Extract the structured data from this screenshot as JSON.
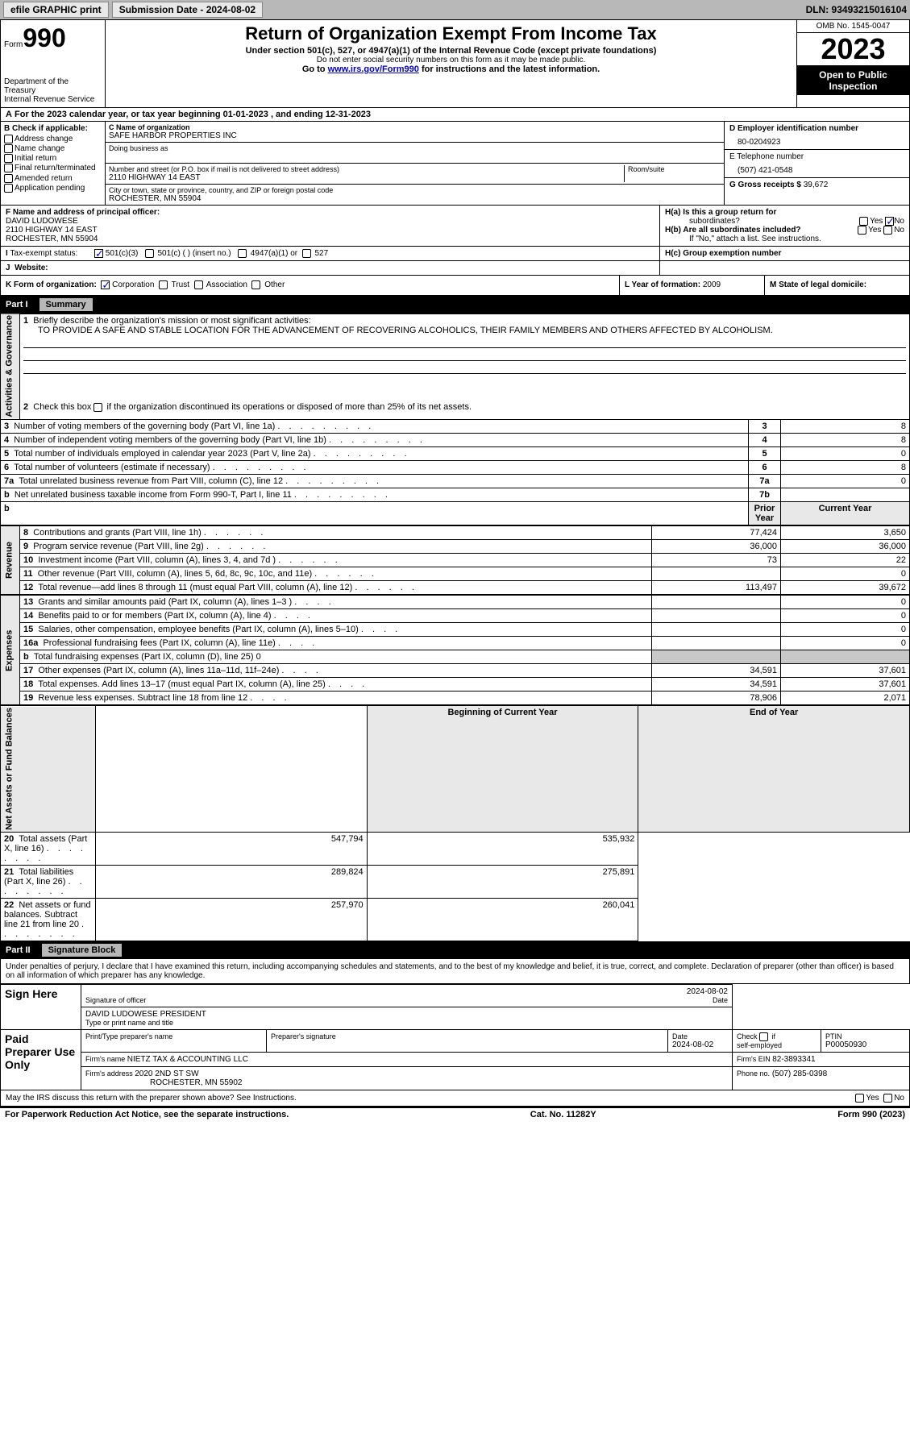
{
  "topbar": {
    "efile": "efile GRAPHIC print",
    "submission": "Submission Date - 2024-08-02",
    "dln": "DLN: 93493215016104"
  },
  "header": {
    "form": "Form",
    "form_no": "990",
    "dept": "Department of the Treasury",
    "irs": "Internal Revenue Service",
    "title": "Return of Organization Exempt From Income Tax",
    "sub1": "Under section 501(c), 527, or 4947(a)(1) of the Internal Revenue Code (except private foundations)",
    "sub2": "Do not enter social security numbers on this form as it may be made public.",
    "sub3_pre": "Go to ",
    "sub3_link": "www.irs.gov/Form990",
    "sub3_post": " for instructions and the latest information.",
    "omb": "OMB No. 1545-0047",
    "year": "2023",
    "inspect": "Open to Public Inspection"
  },
  "a": "For the 2023 calendar year, or tax year beginning 01-01-2023   , and ending 12-31-2023",
  "b": {
    "hdr": "B Check if applicable:",
    "addr": "Address change",
    "name": "Name change",
    "init": "Initial return",
    "final": "Final return/terminated",
    "amend": "Amended return",
    "app": "Application pending"
  },
  "c": {
    "name_lbl": "C Name of organization",
    "name": "SAFE HARBOR PROPERTIES INC",
    "dba_lbl": "Doing business as",
    "addr_lbl": "Number and street (or P.O. box if mail is not delivered to street address)",
    "room_lbl": "Room/suite",
    "addr": "2110 HIGHWAY 14 EAST",
    "city_lbl": "City or town, state or province, country, and ZIP or foreign postal code",
    "city": "ROCHESTER, MN  55904"
  },
  "d": {
    "ein_lbl": "D Employer identification number",
    "ein": "80-0204923",
    "tel_lbl": "E Telephone number",
    "tel": "(507) 421-0548",
    "gross_lbl": "G Gross receipts $",
    "gross": "39,672"
  },
  "f": {
    "lbl": "F  Name and address of principal officer:",
    "name": "DAVID LUDOWESE",
    "addr1": "2110 HIGHWAY 14 EAST",
    "addr2": "ROCHESTER, MN  55904"
  },
  "h": {
    "a_lbl": "H(a)  Is this a group return for",
    "a_sub": "subordinates?",
    "b_lbl": "H(b)  Are all subordinates included?",
    "b_note": "If \"No,\" attach a list. See instructions.",
    "c_lbl": "H(c)  Group exemption number  ",
    "yes": "Yes",
    "no": "No"
  },
  "i": {
    "lbl": "Tax-exempt status:",
    "o1": "501(c)(3)",
    "o2": "501(c) (   ) (insert no.)",
    "o3": "4947(a)(1) or",
    "o4": "527"
  },
  "j": {
    "lbl": "Website: "
  },
  "k": {
    "lbl": "K Form of organization:",
    "corp": "Corporation",
    "trust": "Trust",
    "assoc": "Association",
    "other": "Other"
  },
  "l": {
    "lbl": "L Year of formation:",
    "val": "2009"
  },
  "m": {
    "lbl": "M State of legal domicile:"
  },
  "part1": {
    "hdr": "Part I",
    "title": "Summary"
  },
  "summary": {
    "q1_lbl": "Briefly describe the organization's mission or most significant activities:",
    "q1_val": "TO PROVIDE A SAFE AND STABLE LOCATION FOR THE ADVANCEMENT OF RECOVERING ALCOHOLICS, THEIR FAMILY MEMBERS AND OTHERS AFFECTED BY ALCOHOLISM.",
    "q2": "Check this box      if the organization discontinued its operations or disposed of more than 25% of its net assets.",
    "rows_ag": [
      {
        "n": "3",
        "t": "Number of voting members of the governing body (Part VI, line 1a)",
        "b": "3",
        "v": "8"
      },
      {
        "n": "4",
        "t": "Number of independent voting members of the governing body (Part VI, line 1b)",
        "b": "4",
        "v": "8"
      },
      {
        "n": "5",
        "t": "Total number of individuals employed in calendar year 2023 (Part V, line 2a)",
        "b": "5",
        "v": "0"
      },
      {
        "n": "6",
        "t": "Total number of volunteers (estimate if necessary)",
        "b": "6",
        "v": "8"
      },
      {
        "n": "7a",
        "t": "Total unrelated business revenue from Part VIII, column (C), line 12",
        "b": "7a",
        "v": "0"
      },
      {
        "n": "b",
        "t": "Net unrelated business taxable income from Form 990-T, Part I, line 11",
        "b": "7b",
        "v": ""
      }
    ],
    "prior_lbl": "Prior Year",
    "curr_lbl": "Current Year",
    "rows_rev": [
      {
        "n": "8",
        "t": "Contributions and grants (Part VIII, line 1h)",
        "p": "77,424",
        "c": "3,650"
      },
      {
        "n": "9",
        "t": "Program service revenue (Part VIII, line 2g)",
        "p": "36,000",
        "c": "36,000"
      },
      {
        "n": "10",
        "t": "Investment income (Part VIII, column (A), lines 3, 4, and 7d )",
        "p": "73",
        "c": "22"
      },
      {
        "n": "11",
        "t": "Other revenue (Part VIII, column (A), lines 5, 6d, 8c, 9c, 10c, and 11e)",
        "p": "",
        "c": "0"
      },
      {
        "n": "12",
        "t": "Total revenue—add lines 8 through 11 (must equal Part VIII, column (A), line 12)",
        "p": "113,497",
        "c": "39,672"
      }
    ],
    "rows_exp": [
      {
        "n": "13",
        "t": "Grants and similar amounts paid (Part IX, column (A), lines 1–3 )",
        "p": "",
        "c": "0"
      },
      {
        "n": "14",
        "t": "Benefits paid to or for members (Part IX, column (A), line 4)",
        "p": "",
        "c": "0"
      },
      {
        "n": "15",
        "t": "Salaries, other compensation, employee benefits (Part IX, column (A), lines 5–10)",
        "p": "",
        "c": "0"
      },
      {
        "n": "16a",
        "t": "Professional fundraising fees (Part IX, column (A), line 11e)",
        "p": "",
        "c": "0"
      },
      {
        "n": "b",
        "t": "Total fundraising expenses (Part IX, column (D), line 25) 0",
        "p": "SH",
        "c": "SH"
      },
      {
        "n": "17",
        "t": "Other expenses (Part IX, column (A), lines 11a–11d, 11f–24e)",
        "p": "34,591",
        "c": "37,601"
      },
      {
        "n": "18",
        "t": "Total expenses. Add lines 13–17 (must equal Part IX, column (A), line 25)",
        "p": "34,591",
        "c": "37,601"
      },
      {
        "n": "19",
        "t": "Revenue less expenses. Subtract line 18 from line 12",
        "p": "78,906",
        "c": "2,071"
      }
    ],
    "beg_lbl": "Beginning of Current Year",
    "end_lbl": "End of Year",
    "rows_net": [
      {
        "n": "20",
        "t": "Total assets (Part X, line 16)",
        "p": "547,794",
        "c": "535,932"
      },
      {
        "n": "21",
        "t": "Total liabilities (Part X, line 26)",
        "p": "289,824",
        "c": "275,891"
      },
      {
        "n": "22",
        "t": "Net assets or fund balances. Subtract line 21 from line 20",
        "p": "257,970",
        "c": "260,041"
      }
    ],
    "vlabels": {
      "ag": "Activities & Governance",
      "rev": "Revenue",
      "exp": "Expenses",
      "net": "Net Assets or Fund Balances"
    }
  },
  "part2": {
    "hdr": "Part II",
    "title": "Signature Block"
  },
  "sig": {
    "decl": "Under penalties of perjury, I declare that I have examined this return, including accompanying schedules and statements, and to the best of my knowledge and belief, it is true, correct, and complete. Declaration of preparer (other than officer) is based on all information of which preparer has any knowledge.",
    "sign_here": "Sign Here",
    "sig_officer": "Signature of officer",
    "date_lbl": "Date",
    "date1": "2024-08-02",
    "name_title": "DAVID LUDOWESE PRESIDENT",
    "type_lbl": "Type or print name and title",
    "paid": "Paid Preparer Use Only",
    "prep_name_lbl": "Print/Type preparer's name",
    "prep_sig_lbl": "Preparer's signature",
    "date2": "2024-08-02",
    "check_lbl": "Check         if self-employed",
    "ptin_lbl": "PTIN",
    "ptin": "P00050930",
    "firm_name_lbl": "Firm's name    ",
    "firm_name": "NIETZ TAX & ACCOUNTING LLC",
    "firm_ein_lbl": "Firm's EIN  ",
    "firm_ein": "82-3893341",
    "firm_addr_lbl": "Firm's address ",
    "firm_addr1": "2020 2ND ST SW",
    "firm_addr2": "ROCHESTER, MN  55902",
    "phone_lbl": "Phone no.",
    "phone": "(507) 285-0398",
    "discuss": "May the IRS discuss this return with the preparer shown above? See Instructions."
  },
  "footer": {
    "pra": "For Paperwork Reduction Act Notice, see the separate instructions.",
    "cat": "Cat. No. 11282Y",
    "form": "Form 990 (2023)"
  }
}
